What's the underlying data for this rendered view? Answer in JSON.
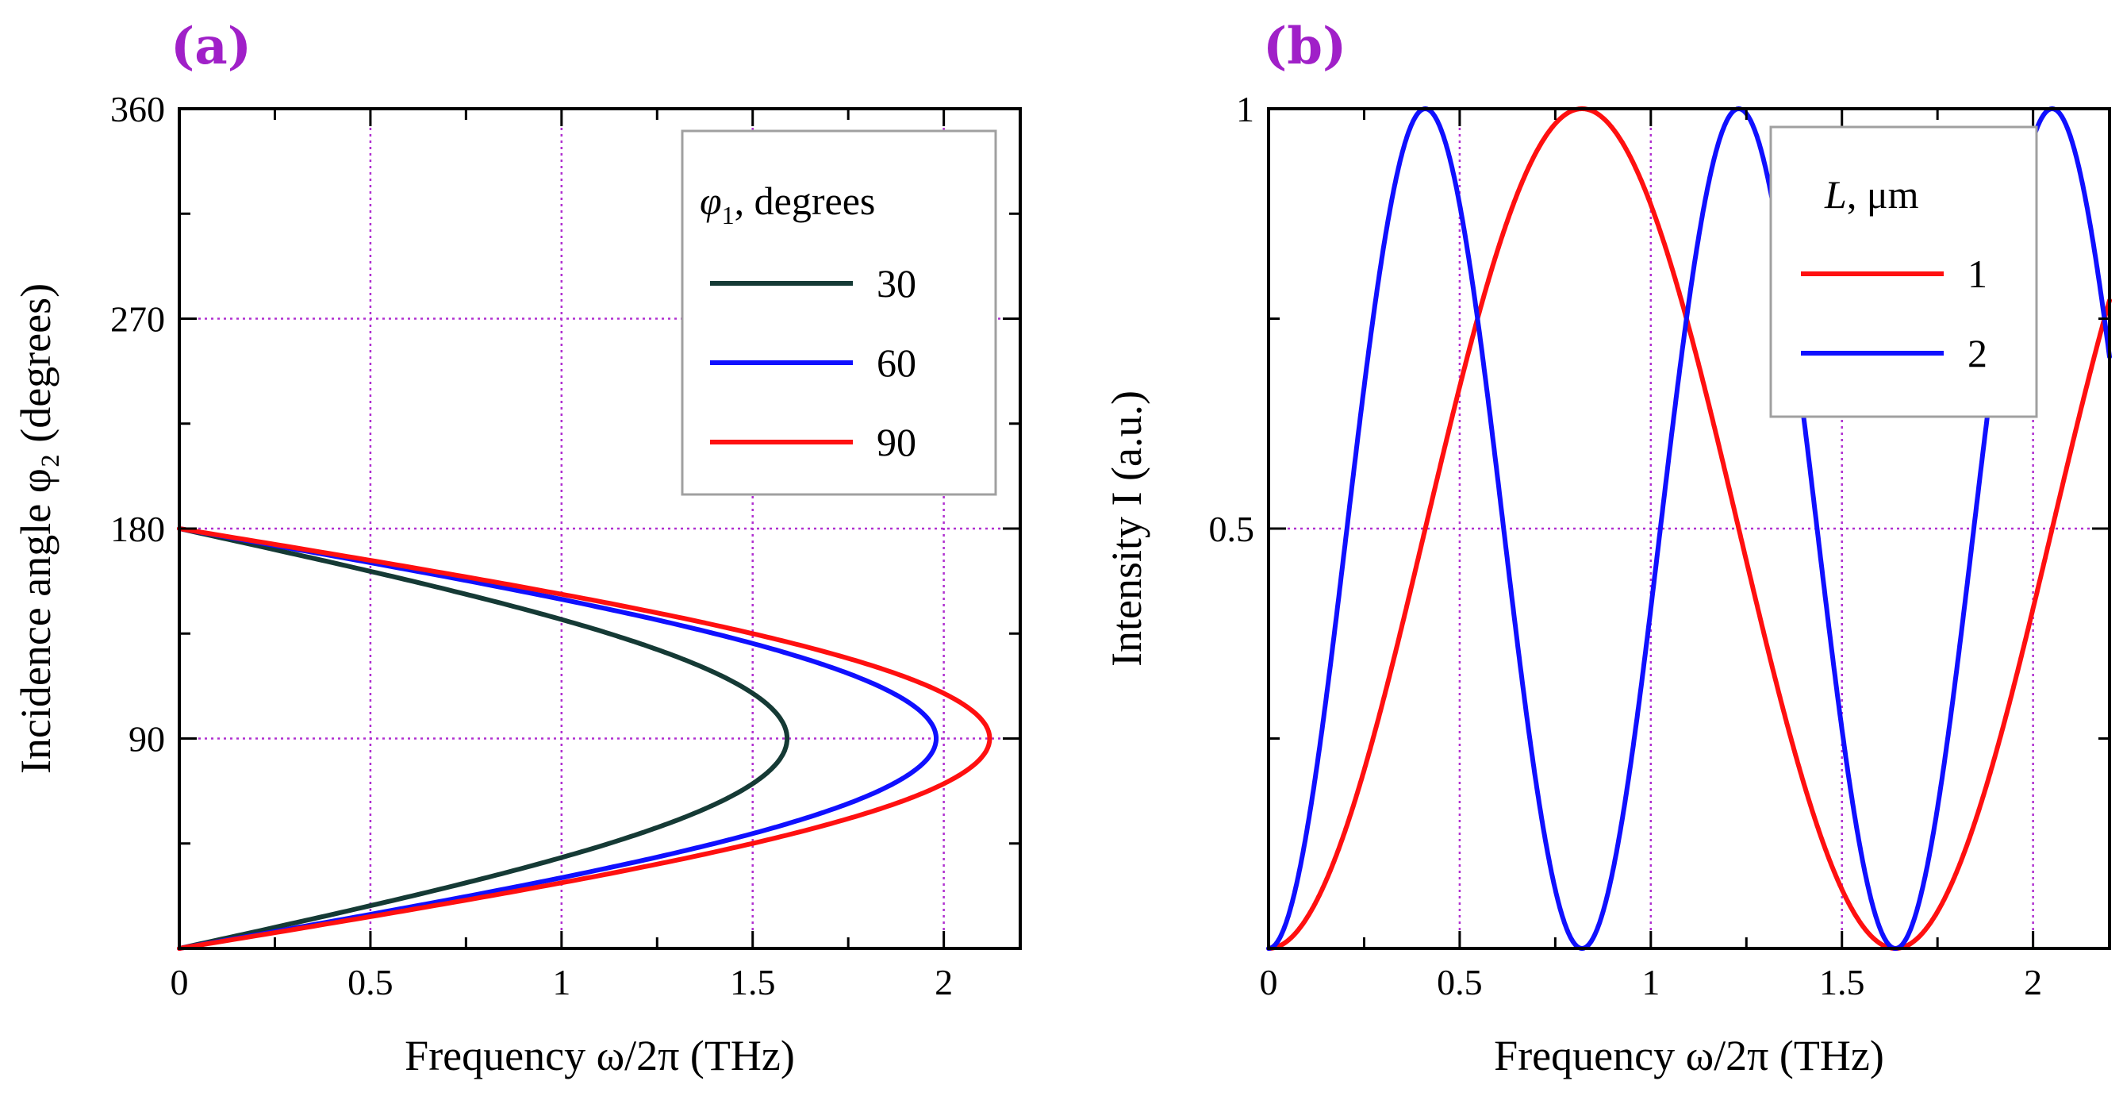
{
  "chart_data": [
    {
      "panel": "(a)",
      "type": "line",
      "xlabel": "Frequency ω/2π (THz)",
      "ylabel": "Incidence angle φ₂ (degrees)",
      "xlim": [
        0,
        2.2
      ],
      "ylim": [
        0,
        360
      ],
      "xticks": [
        "0",
        "0.5",
        "1",
        "1.5",
        "2"
      ],
      "xtick_values": [
        0,
        0.5,
        1,
        1.5,
        2
      ],
      "yticks": [
        "90",
        "180",
        "270",
        "360"
      ],
      "ytick_values": [
        90,
        180,
        270,
        360
      ],
      "minor_x": [
        0.25,
        0.75,
        1.25,
        1.75
      ],
      "minor_y": [
        45,
        135,
        225,
        315
      ],
      "grid_x": [
        0.5,
        1,
        1.5,
        2
      ],
      "grid_y": [
        90,
        180,
        270
      ],
      "legend": {
        "title_symbol": "φ",
        "title_sub": "1",
        "title_rest": ", degrees",
        "position": "top-right"
      },
      "model": "f = fmax * cos(φ2 - 90°), clipped at f >= 0",
      "series": [
        {
          "name": "30",
          "color": "#153a35",
          "fmax": 1.59
        },
        {
          "name": "60",
          "color": "#1010ff",
          "fmax": 1.98
        },
        {
          "name": "90",
          "color": "#ff1010",
          "fmax": 2.12
        }
      ]
    },
    {
      "panel": "(b)",
      "type": "line",
      "xlabel": "Frequency ω/2π (THz)",
      "ylabel": "Intensity I (a.u.)",
      "xlim": [
        0,
        2.2
      ],
      "ylim": [
        0,
        1
      ],
      "xticks": [
        "0",
        "0.5",
        "1",
        "1.5",
        "2"
      ],
      "xtick_values": [
        0,
        0.5,
        1,
        1.5,
        2
      ],
      "yticks": [
        "0.5",
        "1"
      ],
      "ytick_values": [
        0.5,
        1
      ],
      "minor_x": [
        0.25,
        0.75,
        1.25,
        1.75
      ],
      "minor_y": [
        0.25,
        0.75
      ],
      "grid_x": [
        0.5,
        1,
        1.5,
        2
      ],
      "grid_y": [
        0.5
      ],
      "legend": {
        "title_symbol": "L",
        "title_rest": ", μm",
        "position": "top-right"
      },
      "model": "I = sin²(π f / period)",
      "series": [
        {
          "name": "1",
          "color": "#ff1010",
          "period": 1.64
        },
        {
          "name": "2",
          "color": "#1010ff",
          "period": 0.82
        }
      ]
    }
  ]
}
